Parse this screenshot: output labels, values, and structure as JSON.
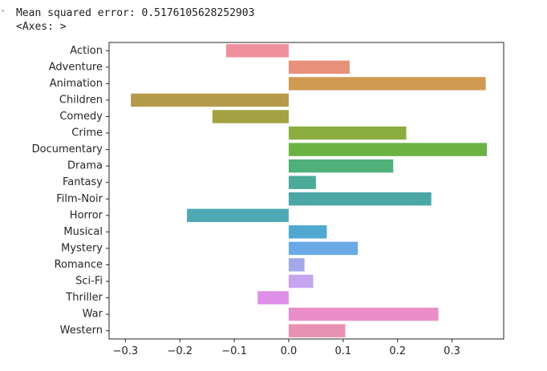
{
  "output": {
    "line1": "Mean squared error: 0.5176105628252903",
    "line2": "<Axes: >"
  },
  "chart_data": {
    "type": "bar",
    "orientation": "horizontal",
    "title": "",
    "xlabel": "",
    "ylabel": "",
    "xlim": [
      -0.33,
      0.395
    ],
    "xticks": [
      -0.3,
      -0.2,
      -0.1,
      0.0,
      0.1,
      0.2,
      0.3
    ],
    "xtick_labels": [
      "−0.3",
      "−0.2",
      "−0.1",
      "0.0",
      "0.1",
      "0.2",
      "0.3"
    ],
    "grid": false,
    "categories": [
      "Action",
      "Adventure",
      "Animation",
      "Children",
      "Comedy",
      "Crime",
      "Documentary",
      "Drama",
      "Fantasy",
      "Film-Noir",
      "Horror",
      "Musical",
      "Mystery",
      "Romance",
      "Sci-Fi",
      "Thriller",
      "War",
      "Western"
    ],
    "values": [
      -0.115,
      0.112,
      0.362,
      -0.29,
      -0.14,
      0.216,
      0.364,
      0.192,
      0.05,
      0.262,
      -0.187,
      0.07,
      0.127,
      0.029,
      0.045,
      -0.057,
      0.275,
      0.104
    ],
    "colors": [
      "#f0909c",
      "#e8917a",
      "#d19a52",
      "#b59a4c",
      "#a3a142",
      "#8bad3f",
      "#6bb345",
      "#4fb07a",
      "#4bab9a",
      "#4aa7a5",
      "#4ea9b5",
      "#4fa8cf",
      "#6aaae6",
      "#a3a8eb",
      "#c6a4ee",
      "#e08fe8",
      "#ea8ec9",
      "#e891b3"
    ]
  }
}
